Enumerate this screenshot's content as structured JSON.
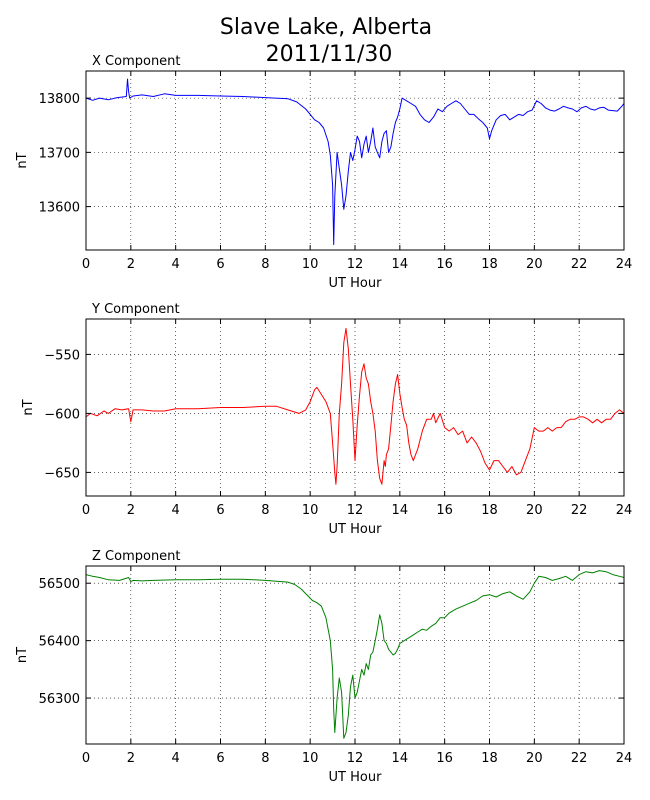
{
  "title_line1": "Slave Lake, Alberta",
  "title_line2": "2011/11/30",
  "chart_data": [
    {
      "type": "line",
      "title": "X Component",
      "xlabel": "UT Hour",
      "ylabel": "nT",
      "xlim": [
        0,
        24
      ],
      "ylim": [
        13520,
        13850
      ],
      "xticks": [
        0,
        2,
        4,
        6,
        8,
        10,
        12,
        14,
        16,
        18,
        20,
        22,
        24
      ],
      "yticks": [
        13600,
        13700,
        13800
      ],
      "grid": true,
      "color": "#0000ff",
      "series": [
        {
          "x": [
            0,
            0.3,
            0.6,
            1.0,
            1.4,
            1.8,
            1.85,
            1.9,
            1.95,
            2.1,
            2.5,
            3.0,
            3.5,
            4.0,
            5.0,
            6.0,
            7.0,
            8.0,
            9.0,
            9.4,
            9.8,
            10.0,
            10.2,
            10.4,
            10.6,
            10.8,
            10.9,
            11.0,
            11.05,
            11.1,
            11.2,
            11.3,
            11.4,
            11.5,
            11.6,
            11.7,
            11.8,
            11.9,
            12.0,
            12.1,
            12.2,
            12.3,
            12.4,
            12.5,
            12.6,
            12.7,
            12.8,
            12.9,
            13.0,
            13.1,
            13.2,
            13.3,
            13.4,
            13.5,
            13.6,
            13.7,
            13.8,
            13.9,
            14.0,
            14.1,
            14.3,
            14.5,
            14.7,
            14.9,
            15.1,
            15.3,
            15.5,
            15.7,
            15.9,
            16.1,
            16.3,
            16.5,
            16.7,
            16.9,
            17.1,
            17.3,
            17.5,
            17.7,
            17.9,
            18.0,
            18.1,
            18.3,
            18.5,
            18.7,
            18.9,
            19.1,
            19.3,
            19.5,
            19.7,
            19.9,
            20.1,
            20.3,
            20.5,
            20.7,
            20.9,
            21.1,
            21.3,
            21.5,
            21.7,
            21.9,
            22.1,
            22.3,
            22.5,
            22.7,
            22.9,
            23.1,
            23.3,
            23.5,
            23.7,
            23.9,
            24.0
          ],
          "y": [
            13800,
            13796,
            13800,
            13797,
            13801,
            13803,
            13835,
            13812,
            13800,
            13804,
            13806,
            13803,
            13808,
            13805,
            13805,
            13804,
            13803,
            13801,
            13799,
            13793,
            13780,
            13770,
            13760,
            13755,
            13745,
            13720,
            13695,
            13640,
            13530,
            13620,
            13700,
            13670,
            13640,
            13595,
            13620,
            13665,
            13700,
            13685,
            13705,
            13730,
            13720,
            13690,
            13715,
            13730,
            13700,
            13720,
            13745,
            13710,
            13700,
            13690,
            13720,
            13735,
            13740,
            13700,
            13710,
            13735,
            13755,
            13765,
            13780,
            13800,
            13795,
            13790,
            13785,
            13770,
            13760,
            13755,
            13765,
            13780,
            13775,
            13785,
            13790,
            13795,
            13790,
            13780,
            13770,
            13770,
            13762,
            13755,
            13745,
            13725,
            13740,
            13760,
            13768,
            13770,
            13760,
            13765,
            13770,
            13768,
            13775,
            13778,
            13795,
            13790,
            13782,
            13778,
            13776,
            13780,
            13785,
            13782,
            13780,
            13775,
            13782,
            13785,
            13780,
            13778,
            13782,
            13783,
            13778,
            13777,
            13776,
            13785,
            13790
          ]
        }
      ]
    },
    {
      "type": "line",
      "title": "Y Component",
      "xlabel": "UT Hour",
      "ylabel": "nT",
      "xlim": [
        0,
        24
      ],
      "ylim": [
        -670,
        -520
      ],
      "xticks": [
        0,
        2,
        4,
        6,
        8,
        10,
        12,
        14,
        16,
        18,
        20,
        22,
        24
      ],
      "yticks": [
        -550,
        -600,
        -650
      ],
      "grid": true,
      "color": "#ff0000",
      "series": [
        {
          "x": [
            0,
            0.2,
            0.5,
            0.8,
            1.0,
            1.3,
            1.6,
            1.9,
            2.0,
            2.1,
            2.5,
            3.0,
            3.5,
            4.0,
            5.0,
            6.0,
            7.0,
            8.0,
            8.5,
            9.0,
            9.5,
            9.8,
            10.0,
            10.2,
            10.3,
            10.5,
            10.7,
            10.9,
            11.0,
            11.1,
            11.15,
            11.2,
            11.3,
            11.4,
            11.5,
            11.6,
            11.7,
            11.8,
            11.9,
            12.0,
            12.1,
            12.2,
            12.3,
            12.4,
            12.5,
            12.6,
            12.7,
            12.8,
            12.9,
            13.0,
            13.1,
            13.2,
            13.3,
            13.35,
            13.4,
            13.5,
            13.6,
            13.7,
            13.8,
            13.9,
            14.0,
            14.1,
            14.2,
            14.3,
            14.4,
            14.5,
            14.6,
            14.8,
            15.0,
            15.2,
            15.4,
            15.5,
            15.6,
            15.8,
            16.0,
            16.2,
            16.4,
            16.6,
            16.8,
            17.0,
            17.2,
            17.4,
            17.6,
            17.8,
            18.0,
            18.2,
            18.4,
            18.6,
            18.8,
            19.0,
            19.2,
            19.4,
            19.6,
            19.8,
            20.0,
            20.2,
            20.4,
            20.6,
            20.8,
            21.0,
            21.2,
            21.4,
            21.6,
            21.8,
            22.0,
            22.2,
            22.4,
            22.6,
            22.8,
            23.0,
            23.2,
            23.4,
            23.6,
            23.8,
            24.0
          ],
          "y": [
            -603,
            -600,
            -602,
            -598,
            -600,
            -596,
            -597,
            -596,
            -607,
            -597,
            -597,
            -598,
            -598,
            -596,
            -596,
            -595,
            -595,
            -594,
            -594,
            -597,
            -600,
            -597,
            -590,
            -580,
            -578,
            -584,
            -590,
            -600,
            -625,
            -650,
            -660,
            -645,
            -600,
            -575,
            -540,
            -528,
            -545,
            -575,
            -605,
            -640,
            -610,
            -585,
            -565,
            -558,
            -570,
            -575,
            -590,
            -600,
            -615,
            -640,
            -655,
            -660,
            -640,
            -645,
            -635,
            -630,
            -610,
            -590,
            -575,
            -567,
            -583,
            -595,
            -605,
            -610,
            -625,
            -635,
            -640,
            -630,
            -615,
            -605,
            -605,
            -600,
            -608,
            -600,
            -612,
            -615,
            -612,
            -618,
            -615,
            -625,
            -620,
            -625,
            -632,
            -642,
            -648,
            -640,
            -640,
            -645,
            -650,
            -645,
            -652,
            -650,
            -640,
            -630,
            -612,
            -615,
            -615,
            -612,
            -615,
            -612,
            -612,
            -607,
            -605,
            -605,
            -603,
            -603,
            -605,
            -608,
            -605,
            -608,
            -605,
            -605,
            -600,
            -597,
            -600
          ]
        }
      ]
    },
    {
      "type": "line",
      "title": "Z Component",
      "xlabel": "UT Hour",
      "ylabel": "nT",
      "xlim": [
        0,
        24
      ],
      "ylim": [
        56220,
        56530
      ],
      "xticks": [
        0,
        2,
        4,
        6,
        8,
        10,
        12,
        14,
        16,
        18,
        20,
        22,
        24
      ],
      "yticks": [
        56300,
        56400,
        56500
      ],
      "grid": true,
      "color": "#008000",
      "series": [
        {
          "x": [
            0,
            0.3,
            0.6,
            1.0,
            1.5,
            1.9,
            2.0,
            2.1,
            2.5,
            3.0,
            4.0,
            5.0,
            6.0,
            7.0,
            8.0,
            9.0,
            9.3,
            9.6,
            9.9,
            10.1,
            10.3,
            10.5,
            10.7,
            10.9,
            11.0,
            11.05,
            11.1,
            11.2,
            11.3,
            11.4,
            11.5,
            11.6,
            11.7,
            11.8,
            11.9,
            12.0,
            12.1,
            12.2,
            12.3,
            12.4,
            12.5,
            12.6,
            12.7,
            12.8,
            12.9,
            13.0,
            13.1,
            13.2,
            13.3,
            13.4,
            13.5,
            13.6,
            13.7,
            13.8,
            13.9,
            14.0,
            14.2,
            14.4,
            14.6,
            14.8,
            15.0,
            15.2,
            15.4,
            15.6,
            15.8,
            16.0,
            16.2,
            16.5,
            16.8,
            17.1,
            17.4,
            17.7,
            18.0,
            18.3,
            18.6,
            18.9,
            19.2,
            19.5,
            19.8,
            20.0,
            20.2,
            20.5,
            20.8,
            21.1,
            21.4,
            21.7,
            22.0,
            22.3,
            22.6,
            22.9,
            23.2,
            23.5,
            23.8,
            24.0
          ],
          "y": [
            56515,
            56512,
            56510,
            56506,
            56505,
            56510,
            56503,
            56505,
            56504,
            56505,
            56506,
            56506,
            56507,
            56507,
            56505,
            56502,
            56498,
            56490,
            56478,
            56470,
            56466,
            56460,
            56440,
            56400,
            56350,
            56280,
            56240,
            56300,
            56335,
            56310,
            56230,
            56240,
            56270,
            56320,
            56340,
            56300,
            56310,
            56330,
            56350,
            56340,
            56360,
            56350,
            56375,
            56380,
            56400,
            56420,
            56445,
            56430,
            56400,
            56395,
            56385,
            56380,
            56375,
            56378,
            56385,
            56395,
            56400,
            56405,
            56410,
            56415,
            56420,
            56418,
            56425,
            56430,
            56440,
            56440,
            56448,
            56455,
            56460,
            56465,
            56470,
            56478,
            56480,
            56476,
            56482,
            56485,
            56478,
            56472,
            56485,
            56500,
            56512,
            56510,
            56505,
            56508,
            56512,
            56505,
            56515,
            56520,
            56518,
            56522,
            56520,
            56515,
            56512,
            56510
          ]
        }
      ]
    }
  ]
}
